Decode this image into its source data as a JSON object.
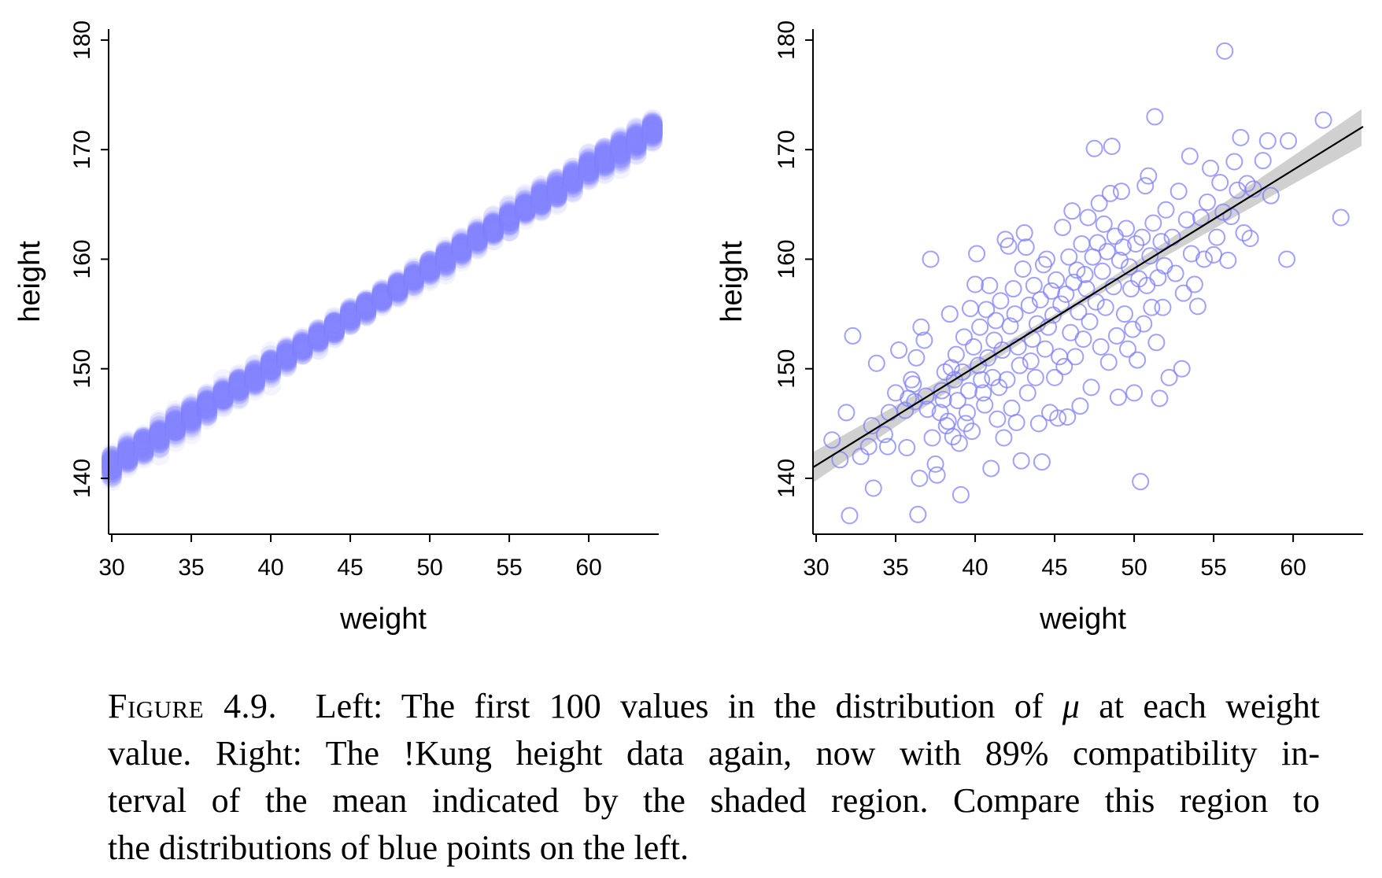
{
  "caption": {
    "figure_label": "Figure 4.9.",
    "text_line1": "Left: The first 100 values in the distribution of ",
    "mu_symbol": "μ",
    "text_line1_end": " at each weight",
    "line2": "value.  Right: The !Kung height data again, now with 89% compatibility in-",
    "line3": "terval of the mean indicated by the shaded region.  Compare this region to",
    "line4": "the distributions of blue points on the left."
  },
  "chart_data": [
    {
      "type": "scatter",
      "panel": "left",
      "description_role": "mu samples per weight",
      "xlabel": "weight",
      "ylabel": "height",
      "xlim": [
        29.8,
        64.4
      ],
      "ylim": [
        134.9,
        181
      ],
      "xticks": [
        30,
        35,
        40,
        45,
        50,
        55,
        60
      ],
      "yticks": [
        140,
        150,
        160,
        170,
        180
      ],
      "weights": [
        30,
        31,
        32,
        33,
        34,
        35,
        36,
        37,
        38,
        39,
        40,
        41,
        42,
        43,
        44,
        45,
        46,
        47,
        48,
        49,
        50,
        51,
        52,
        53,
        54,
        55,
        56,
        57,
        58,
        59,
        60,
        61,
        62,
        63,
        64
      ],
      "mu_line": {
        "intercept_at_30": 141.2,
        "slope": 0.9
      },
      "samples_per_weight": 100,
      "point_color": "#8080ff",
      "grid": false
    },
    {
      "type": "scatter",
      "panel": "right",
      "xlabel": "weight",
      "ylabel": "height",
      "xlim": [
        29.8,
        64.4
      ],
      "ylim": [
        134.9,
        181
      ],
      "xticks": [
        30,
        35,
        40,
        45,
        50,
        55,
        60
      ],
      "yticks": [
        140,
        150,
        160,
        170,
        180
      ],
      "regression_line": {
        "x": [
          29.8,
          64.4
        ],
        "y": [
          141.0,
          172.1
        ]
      },
      "interval": {
        "label": "89% compatibility interval",
        "color": "#cccccc"
      },
      "point_color": "#8080ff",
      "grid": false,
      "points": [
        [
          31.0,
          143.5
        ],
        [
          31.5,
          141.7
        ],
        [
          31.9,
          146.0
        ],
        [
          32.1,
          136.6
        ],
        [
          32.3,
          153.0
        ],
        [
          32.8,
          142.0
        ],
        [
          33.3,
          142.9
        ],
        [
          33.6,
          139.1
        ],
        [
          33.5,
          144.8
        ],
        [
          33.8,
          150.5
        ],
        [
          34.3,
          144.0
        ],
        [
          34.5,
          142.9
        ],
        [
          34.6,
          146.0
        ],
        [
          35.0,
          147.8
        ],
        [
          35.2,
          151.7
        ],
        [
          35.6,
          146.2
        ],
        [
          35.7,
          142.8
        ],
        [
          35.8,
          147.3
        ],
        [
          36.0,
          149.0
        ],
        [
          36.1,
          148.6
        ],
        [
          36.2,
          147.0
        ],
        [
          36.3,
          151.0
        ],
        [
          36.4,
          136.7
        ],
        [
          36.5,
          140.0
        ],
        [
          36.6,
          153.8
        ],
        [
          36.8,
          152.6
        ],
        [
          36.9,
          147.5
        ],
        [
          37.0,
          146.3
        ],
        [
          37.2,
          160.0
        ],
        [
          37.3,
          143.7
        ],
        [
          37.5,
          141.3
        ],
        [
          37.6,
          140.3
        ],
        [
          37.8,
          146.0
        ],
        [
          37.9,
          148.0
        ],
        [
          38.0,
          147.2
        ],
        [
          38.1,
          149.7
        ],
        [
          38.2,
          144.8
        ],
        [
          38.3,
          145.2
        ],
        [
          38.4,
          155.0
        ],
        [
          38.5,
          150.1
        ],
        [
          38.6,
          143.8
        ],
        [
          38.7,
          149.0
        ],
        [
          38.8,
          151.3
        ],
        [
          38.9,
          147.1
        ],
        [
          39.0,
          143.2
        ],
        [
          39.1,
          138.5
        ],
        [
          39.2,
          149.7
        ],
        [
          39.3,
          152.9
        ],
        [
          39.4,
          145.0
        ],
        [
          39.5,
          146.0
        ],
        [
          39.6,
          148.0
        ],
        [
          39.7,
          155.5
        ],
        [
          39.8,
          144.3
        ],
        [
          39.9,
          152.0
        ],
        [
          40.0,
          157.7
        ],
        [
          40.1,
          160.5
        ],
        [
          40.2,
          150.3
        ],
        [
          40.3,
          153.8
        ],
        [
          40.4,
          149.0
        ],
        [
          40.5,
          147.8
        ],
        [
          40.6,
          146.7
        ],
        [
          40.7,
          155.4
        ],
        [
          40.8,
          151.0
        ],
        [
          40.9,
          157.6
        ],
        [
          41.0,
          140.9
        ],
        [
          41.1,
          149.2
        ],
        [
          41.2,
          152.6
        ],
        [
          41.3,
          154.4
        ],
        [
          41.4,
          145.4
        ],
        [
          41.5,
          148.3
        ],
        [
          41.6,
          156.2
        ],
        [
          41.7,
          151.7
        ],
        [
          41.8,
          143.7
        ],
        [
          41.9,
          161.8
        ],
        [
          42.0,
          149.0
        ],
        [
          42.1,
          161.2
        ],
        [
          42.2,
          153.9
        ],
        [
          42.3,
          146.4
        ],
        [
          42.4,
          157.3
        ],
        [
          42.5,
          155.0
        ],
        [
          42.6,
          145.1
        ],
        [
          42.7,
          152.0
        ],
        [
          42.8,
          150.3
        ],
        [
          42.9,
          141.6
        ],
        [
          43.0,
          159.1
        ],
        [
          43.1,
          162.4
        ],
        [
          43.2,
          161.1
        ],
        [
          43.3,
          147.8
        ],
        [
          43.4,
          155.8
        ],
        [
          43.5,
          150.7
        ],
        [
          43.6,
          152.7
        ],
        [
          43.7,
          157.6
        ],
        [
          43.8,
          149.2
        ],
        [
          43.9,
          154.1
        ],
        [
          44.0,
          145.0
        ],
        [
          44.1,
          156.3
        ],
        [
          44.2,
          141.5
        ],
        [
          44.3,
          159.5
        ],
        [
          44.4,
          151.8
        ],
        [
          44.5,
          160.0
        ],
        [
          44.6,
          153.8
        ],
        [
          44.7,
          146.0
        ],
        [
          44.8,
          157.1
        ],
        [
          44.9,
          154.9
        ],
        [
          45.0,
          149.2
        ],
        [
          45.1,
          158.1
        ],
        [
          45.2,
          145.5
        ],
        [
          45.3,
          151.1
        ],
        [
          45.4,
          155.9
        ],
        [
          45.5,
          162.9
        ],
        [
          45.6,
          150.2
        ],
        [
          45.7,
          156.8
        ],
        [
          45.8,
          145.6
        ],
        [
          45.9,
          160.2
        ],
        [
          46.0,
          153.3
        ],
        [
          46.1,
          164.4
        ],
        [
          46.2,
          157.9
        ],
        [
          46.3,
          151.1
        ],
        [
          46.4,
          159.0
        ],
        [
          46.5,
          155.2
        ],
        [
          46.6,
          146.6
        ],
        [
          46.7,
          161.4
        ],
        [
          46.8,
          152.7
        ],
        [
          46.9,
          158.6
        ],
        [
          47.0,
          157.3
        ],
        [
          47.1,
          163.8
        ],
        [
          47.2,
          154.3
        ],
        [
          47.3,
          148.3
        ],
        [
          47.4,
          160.2
        ],
        [
          47.5,
          170.1
        ],
        [
          47.6,
          156.1
        ],
        [
          47.7,
          161.5
        ],
        [
          47.8,
          165.1
        ],
        [
          47.9,
          152.0
        ],
        [
          48.0,
          158.9
        ],
        [
          48.1,
          163.2
        ],
        [
          48.2,
          155.6
        ],
        [
          48.3,
          160.7
        ],
        [
          48.4,
          150.6
        ],
        [
          48.5,
          166.0
        ],
        [
          48.6,
          170.3
        ],
        [
          48.7,
          157.5
        ],
        [
          48.8,
          162.1
        ],
        [
          48.9,
          153.0
        ],
        [
          49.0,
          147.4
        ],
        [
          49.1,
          159.9
        ],
        [
          49.2,
          166.2
        ],
        [
          49.3,
          161.1
        ],
        [
          49.4,
          155.0
        ],
        [
          49.5,
          162.8
        ],
        [
          49.6,
          151.8
        ],
        [
          49.7,
          159.3
        ],
        [
          49.8,
          157.3
        ],
        [
          49.9,
          153.6
        ],
        [
          50.0,
          147.8
        ],
        [
          50.1,
          161.4
        ],
        [
          50.2,
          150.8
        ],
        [
          50.3,
          158.2
        ],
        [
          50.4,
          139.7
        ],
        [
          50.5,
          162.0
        ],
        [
          50.6,
          154.1
        ],
        [
          50.7,
          166.7
        ],
        [
          50.8,
          157.6
        ],
        [
          50.9,
          167.6
        ],
        [
          51.0,
          160.3
        ],
        [
          51.1,
          155.6
        ],
        [
          51.2,
          163.3
        ],
        [
          51.3,
          173.0
        ],
        [
          51.4,
          152.4
        ],
        [
          51.5,
          158.3
        ],
        [
          51.6,
          147.3
        ],
        [
          51.7,
          161.6
        ],
        [
          51.8,
          155.6
        ],
        [
          51.9,
          159.4
        ],
        [
          52.0,
          164.5
        ],
        [
          52.2,
          149.2
        ],
        [
          52.4,
          162.0
        ],
        [
          52.6,
          158.7
        ],
        [
          52.8,
          166.2
        ],
        [
          53.0,
          150.0
        ],
        [
          53.1,
          156.9
        ],
        [
          53.3,
          163.6
        ],
        [
          53.5,
          169.4
        ],
        [
          53.6,
          160.5
        ],
        [
          53.8,
          157.7
        ],
        [
          54.0,
          155.7
        ],
        [
          54.2,
          163.8
        ],
        [
          54.4,
          160.0
        ],
        [
          54.6,
          165.2
        ],
        [
          54.8,
          168.3
        ],
        [
          55.0,
          160.4
        ],
        [
          55.2,
          162.0
        ],
        [
          55.4,
          167.0
        ],
        [
          55.6,
          164.3
        ],
        [
          55.7,
          179.0
        ],
        [
          55.9,
          159.9
        ],
        [
          56.1,
          163.9
        ],
        [
          56.3,
          168.9
        ],
        [
          56.5,
          166.3
        ],
        [
          56.7,
          171.1
        ],
        [
          56.9,
          162.4
        ],
        [
          57.1,
          166.9
        ],
        [
          57.3,
          161.9
        ],
        [
          57.5,
          166.4
        ],
        [
          58.1,
          169.0
        ],
        [
          58.4,
          170.8
        ],
        [
          58.6,
          165.8
        ],
        [
          59.6,
          160.0
        ],
        [
          59.7,
          170.8
        ],
        [
          61.9,
          172.7
        ],
        [
          63.0,
          163.8
        ]
      ]
    }
  ]
}
